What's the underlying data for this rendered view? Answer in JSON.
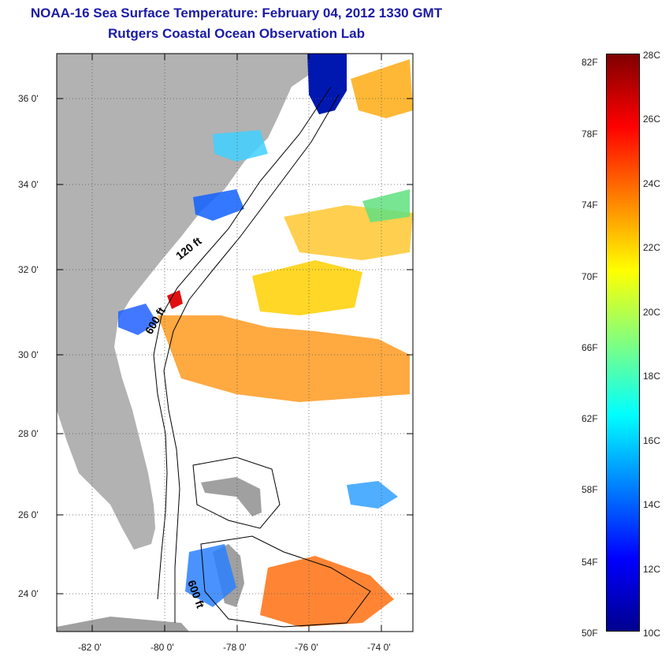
{
  "title": {
    "line1": "NOAA-16 Sea Surface Temperature:  February 04, 2012 1330 GMT",
    "line2": "Rutgers Coastal Ocean Observation Lab"
  },
  "map": {
    "lat_range": [
      23,
      37
    ],
    "lon_range": [
      -83,
      -73
    ],
    "lat_labels": [
      "36 0'",
      "34 0'",
      "32 0'",
      "30 0'",
      "28 0'",
      "26 0'",
      "24 0'"
    ],
    "lon_labels": [
      "-82 0'",
      "-80 0'",
      "-78 0'",
      "-76 0'",
      "-74 0'"
    ],
    "contour_labels": [
      "120 ft",
      "600 ft",
      "600 ft"
    ],
    "land_color": "#b2b2b2",
    "water_no_data_color": "#ffffff"
  },
  "colorbar": {
    "fahrenheit_labels": [
      "82F",
      "78F",
      "74F",
      "70F",
      "66F",
      "62F",
      "58F",
      "54F",
      "50F"
    ],
    "celsius_labels": [
      "28C",
      "26C",
      "24C",
      "22C",
      "20C",
      "18C",
      "16C",
      "14C",
      "12C",
      "10C"
    ],
    "range_celsius": [
      10,
      28
    ],
    "colors": [
      "#00008f",
      "#0000ff",
      "#0080ff",
      "#00ffff",
      "#80ff80",
      "#ffff00",
      "#ff8000",
      "#ff0000",
      "#800000"
    ]
  }
}
